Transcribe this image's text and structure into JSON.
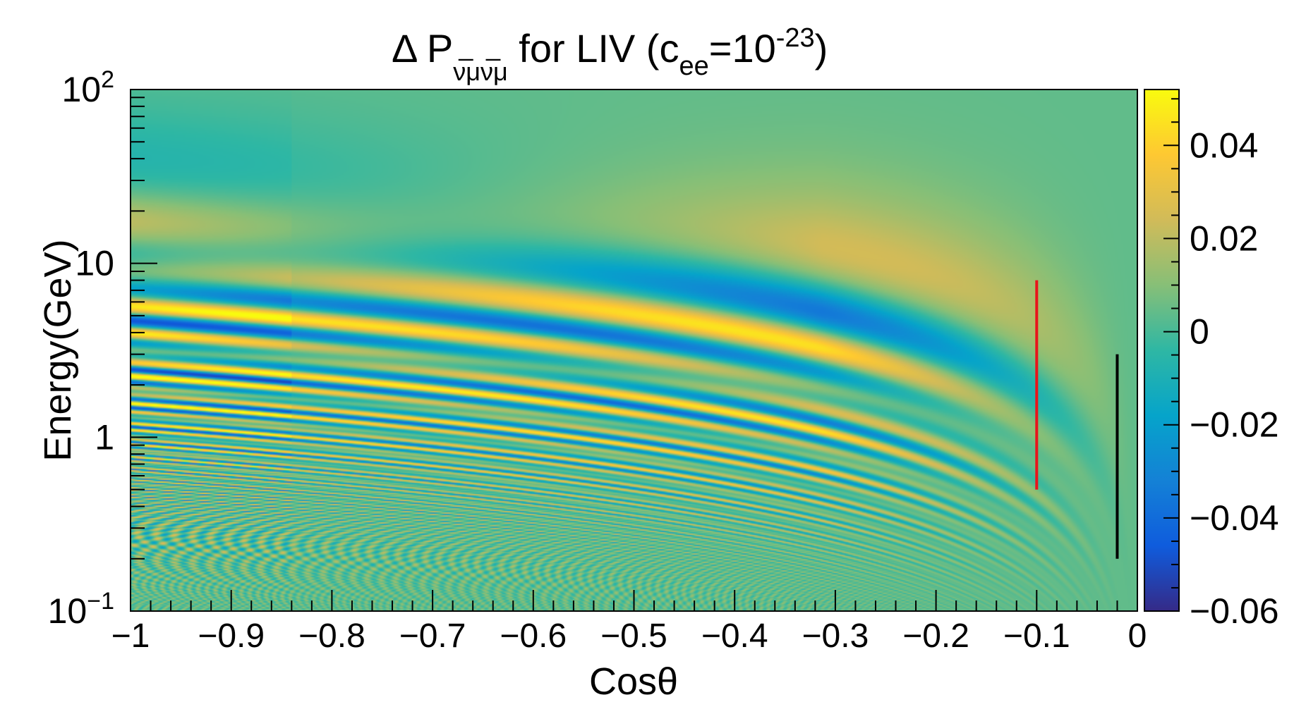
{
  "chart_data": {
    "type": "heatmap",
    "title": {
      "prefix": "Δ P",
      "subscript": "ν̅μν̅μ",
      "middle": " for LIV (c",
      "sub2": "ee",
      "eq": "=10",
      "sup": "-23",
      "suffix": ")"
    },
    "xlabel": "Cosθ",
    "ylabel": "Energy(GeV)",
    "xlim": [
      -1,
      0
    ],
    "ylim": [
      0.1,
      100
    ],
    "y_scale": "log",
    "x_ticks": [
      {
        "value": -1,
        "label": "−1"
      },
      {
        "value": -0.9,
        "label": "−0.9"
      },
      {
        "value": -0.8,
        "label": "−0.8"
      },
      {
        "value": -0.7,
        "label": "−0.7"
      },
      {
        "value": -0.6,
        "label": "−0.6"
      },
      {
        "value": -0.5,
        "label": "−0.5"
      },
      {
        "value": -0.4,
        "label": "−0.4"
      },
      {
        "value": -0.3,
        "label": "−0.3"
      },
      {
        "value": -0.2,
        "label": "−0.2"
      },
      {
        "value": -0.1,
        "label": "−0.1"
      },
      {
        "value": 0,
        "label": "0"
      }
    ],
    "y_ticks": [
      {
        "value": 100,
        "label_base": "10",
        "label_exp": "2"
      },
      {
        "value": 10,
        "label_base": "10",
        "label_exp": ""
      },
      {
        "value": 1,
        "label_base": "1",
        "label_exp": ""
      },
      {
        "value": 0.1,
        "label_base": "10",
        "label_exp": "−1"
      }
    ],
    "colorbar": {
      "range": [
        -0.06,
        0.052
      ],
      "ticks": [
        {
          "value": 0.04,
          "label": "0.04"
        },
        {
          "value": 0.02,
          "label": "0.02"
        },
        {
          "value": 0,
          "label": "0"
        },
        {
          "value": -0.02,
          "label": "−0.02"
        },
        {
          "value": -0.04,
          "label": "−0.04"
        },
        {
          "value": -0.06,
          "label": "−0.06"
        }
      ],
      "palette": [
        "#352a87",
        "#0f5cdd",
        "#1481d6",
        "#06a4ca",
        "#2eb7a4",
        "#87bf77",
        "#d1bb59",
        "#fec832",
        "#f9fb0e"
      ]
    },
    "markers": [
      {
        "color": "#e8141b",
        "x": -0.1,
        "y_from": 0.5,
        "y_to": 8
      },
      {
        "color": "#000000",
        "x": -0.02,
        "y_from": 0.2,
        "y_to": 3
      }
    ]
  }
}
